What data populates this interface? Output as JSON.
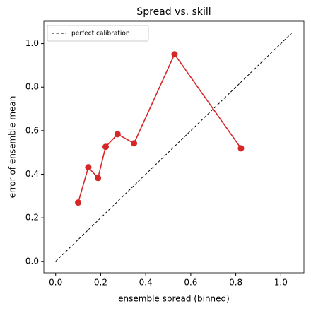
{
  "chart_data": {
    "type": "line",
    "title": "Spread vs. skill",
    "x_label": "ensemble spread (binned)",
    "y_label": "error of ensemble mean",
    "series": [
      {
        "name": "perfect calibration",
        "color": "#000000",
        "dashed": true,
        "markers": false,
        "x": [
          0,
          1.05
        ],
        "values": [
          0,
          1.05
        ]
      },
      {
        "color": "#d62728",
        "dashed": false,
        "markers": true,
        "x": [
          0.1,
          0.145,
          0.188,
          0.222,
          0.275,
          0.348,
          0.528,
          0.823
        ],
        "values": [
          0.27,
          0.432,
          0.383,
          0.526,
          0.584,
          0.542,
          0.951,
          0.519
        ]
      }
    ],
    "xlim": [
      -0.0525,
      1.1025
    ],
    "ylim": [
      -0.0525,
      1.1025
    ],
    "xticks": [
      {
        "value": 0,
        "label": "0.0"
      },
      0.2,
      0.4,
      0.6,
      0.8,
      {
        "value": 1,
        "label": "1.0"
      }
    ],
    "yticks": [
      {
        "value": 0,
        "label": "0.0"
      },
      0.2,
      0.4,
      0.6,
      0.8,
      {
        "value": 1,
        "label": "1.0"
      }
    ],
    "legend": "upper left"
  }
}
